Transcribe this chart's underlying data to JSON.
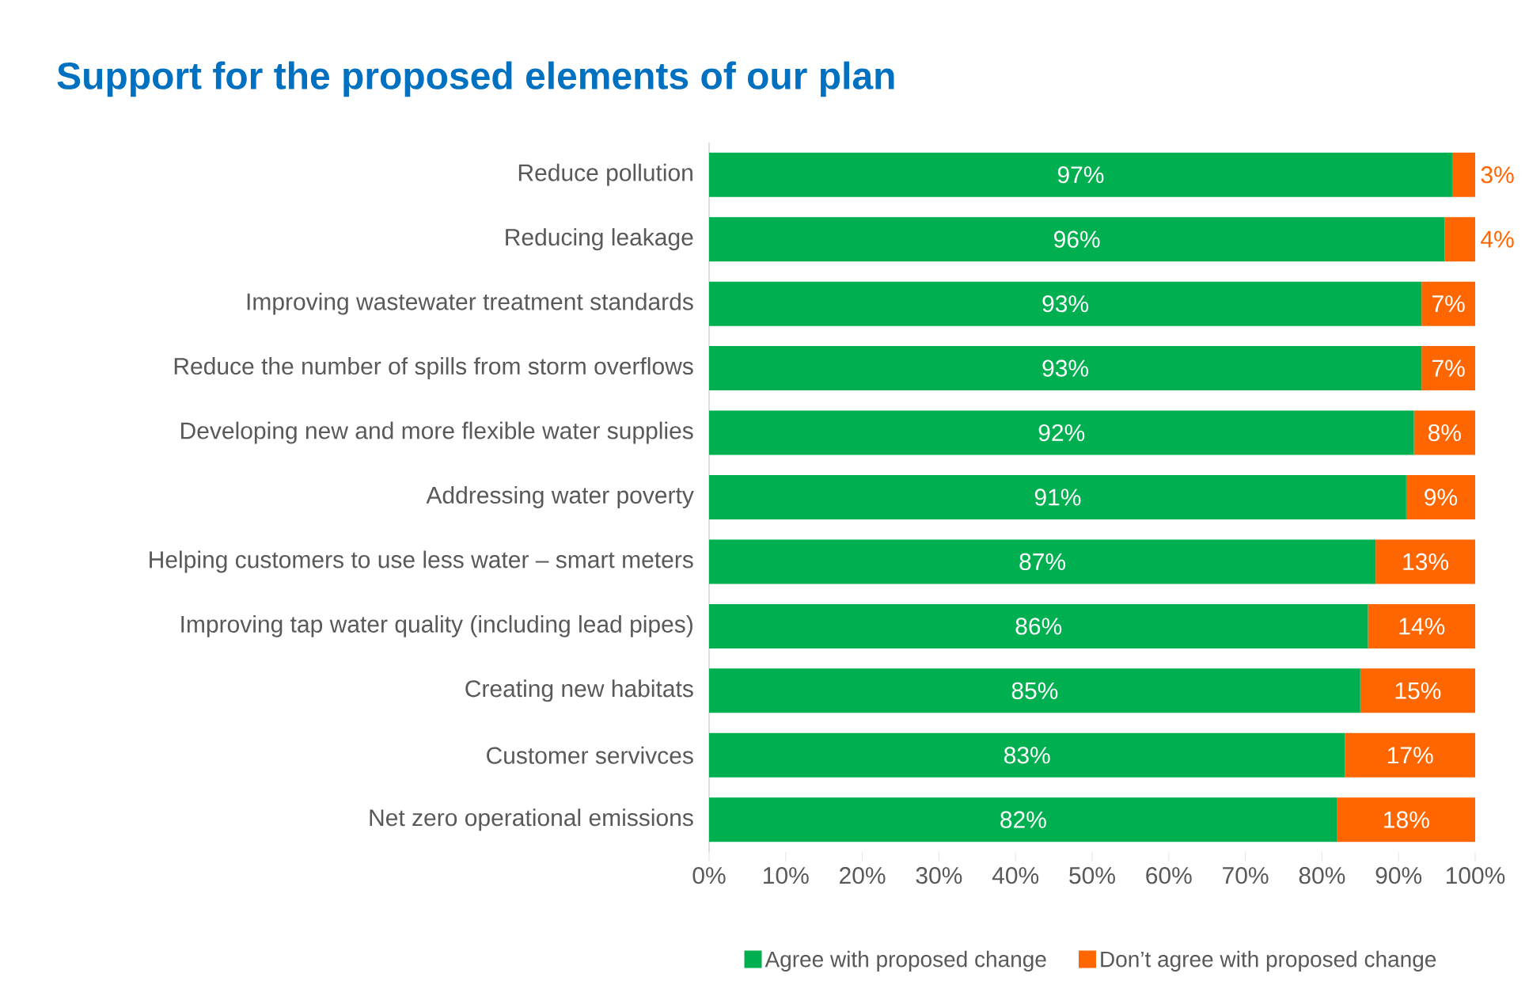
{
  "chart_data": {
    "type": "bar",
    "orientation": "horizontal",
    "stacked": true,
    "title": "Support for the proposed elements of our plan",
    "categories": [
      "Reduce pollution",
      "Reducing leakage",
      "Improving wastewater treatment standards",
      "Reduce the number of spills from storm overflows",
      "Developing new and more flexible water supplies",
      "Addressing water poverty",
      "Helping customers to use less water – smart meters",
      "Improving tap water quality (including lead pipes)",
      "Creating new habitats",
      "Customer servivces",
      "Net zero operational emissions"
    ],
    "series": [
      {
        "name": "Agree with proposed change",
        "color": "#00b050",
        "values": [
          97,
          96,
          93,
          93,
          92,
          91,
          87,
          86,
          85,
          83,
          82
        ],
        "value_labels": [
          "97%",
          "96%",
          "93%",
          "93%",
          "92%",
          "91%",
          "87%",
          "86%",
          "85%",
          "83%",
          "82%"
        ]
      },
      {
        "name": "Don’t agree with proposed change",
        "color": "#ff6600",
        "values": [
          3,
          4,
          7,
          7,
          8,
          9,
          13,
          14,
          15,
          17,
          18
        ],
        "value_labels": [
          "3%",
          "4%",
          "7%",
          "7%",
          "8%",
          "9%",
          "13%",
          "14%",
          "15%",
          "17%",
          "18%"
        ]
      }
    ],
    "xlim": [
      0,
      100
    ],
    "xticks": [
      {
        "value": 0,
        "label": "0%"
      },
      {
        "value": 10,
        "label": "10%"
      },
      {
        "value": 20,
        "label": "20%"
      },
      {
        "value": 30,
        "label": "30%"
      },
      {
        "value": 40,
        "label": "40%"
      },
      {
        "value": 50,
        "label": "50%"
      },
      {
        "value": 60,
        "label": "60%"
      },
      {
        "value": 70,
        "label": "70%"
      },
      {
        "value": 80,
        "label": "80%"
      },
      {
        "value": 90,
        "label": "90%"
      },
      {
        "value": 100,
        "label": "100%"
      }
    ],
    "legend": "bottom"
  }
}
